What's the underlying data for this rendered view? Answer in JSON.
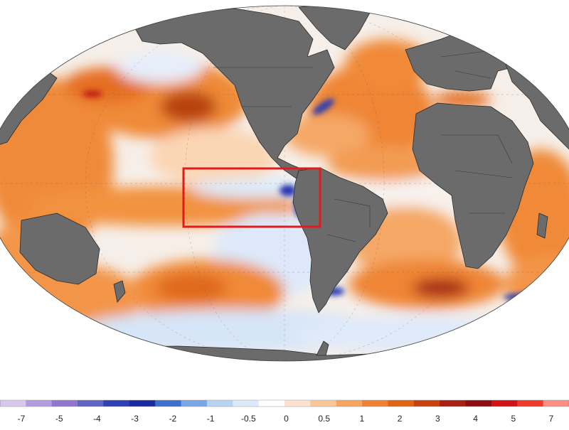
{
  "map": {
    "projection": "mollweide",
    "land_color": "#6b6b6b",
    "border_color": "#2b2b2b",
    "ocean_base_color": "#f7f3f1",
    "highlight_box_color": "#e01b1b"
  },
  "legend": {
    "labels": [
      "-7",
      "-5",
      "-4",
      "-3",
      "-2",
      "-1",
      "-0.5",
      "0",
      "0.5",
      "1",
      "2",
      "3",
      "4",
      "5",
      "7"
    ],
    "colors": [
      "#d8c8ee",
      "#b49ade",
      "#8f77cf",
      "#5e63c6",
      "#2f3fb4",
      "#1c2aa0",
      "#3d6fcf",
      "#7aa6e6",
      "#b7d3f4",
      "#dbe9fa",
      "#ffffff",
      "#fde3cf",
      "#fbc799",
      "#f7a45f",
      "#ef8130",
      "#e06413",
      "#c7420e",
      "#a91f12",
      "#8d0d10",
      "#cf1418",
      "#ef3b2c",
      "#fb8d82"
    ]
  }
}
